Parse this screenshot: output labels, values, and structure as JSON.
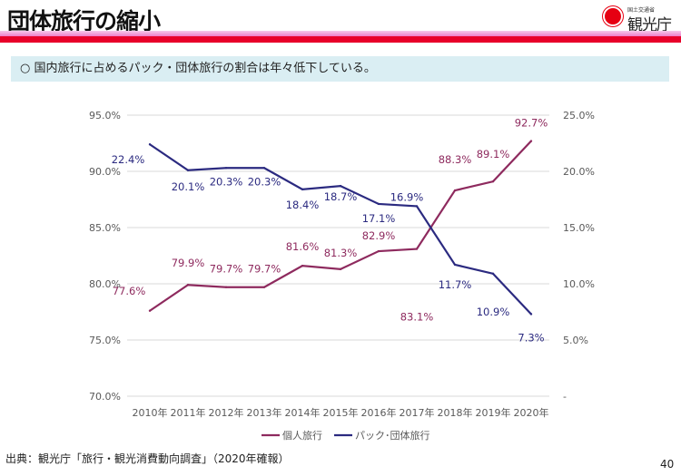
{
  "header": {
    "title": "団体旅行の縮小",
    "logo_small": "国土交通省",
    "logo_text": "観光庁"
  },
  "note": "○ 国内旅行に占めるパック・団体旅行の割合は年々低下している。",
  "source": "出典：観光庁「旅行・観光消費動向調査」（2020年確報）",
  "page_number": "40",
  "chart_data": {
    "type": "line",
    "categories": [
      "2010年",
      "2011年",
      "2012年",
      "2013年",
      "2014年",
      "2015年",
      "2016年",
      "2017年",
      "2018年",
      "2019年",
      "2020年"
    ],
    "series": [
      {
        "name": "個人旅行",
        "axis": "left",
        "color": "#8e2a5e",
        "values": [
          77.6,
          79.9,
          79.7,
          79.7,
          81.6,
          81.3,
          82.9,
          83.1,
          88.3,
          89.1,
          92.7
        ],
        "labels": [
          "77.6%",
          "79.9%",
          "79.7%",
          "79.7%",
          "81.6%",
          "81.3%",
          "82.9%",
          "83.1%",
          "88.3%",
          "89.1%",
          "92.7%"
        ]
      },
      {
        "name": "パック･団体旅行",
        "axis": "right",
        "color": "#2b2a80",
        "values": [
          22.4,
          20.1,
          20.3,
          20.3,
          18.4,
          18.7,
          17.1,
          16.9,
          11.7,
          10.9,
          7.3
        ],
        "labels": [
          "22.4%",
          "20.1%",
          "20.3%",
          "20.3%",
          "18.4%",
          "18.7%",
          "17.1%",
          "16.9%",
          "11.7%",
          "10.9%",
          "7.3%"
        ]
      }
    ],
    "left_axis": {
      "ylim": [
        70,
        95
      ],
      "ticks": [
        "70.0%",
        "75.0%",
        "80.0%",
        "85.0%",
        "90.0%",
        "95.0%"
      ]
    },
    "right_axis": {
      "ylim": [
        0,
        25
      ],
      "ticks": [
        "-",
        "5.0%",
        "10.0%",
        "15.0%",
        "20.0%",
        "25.0%"
      ]
    },
    "grid": true,
    "legend": "bottom"
  }
}
